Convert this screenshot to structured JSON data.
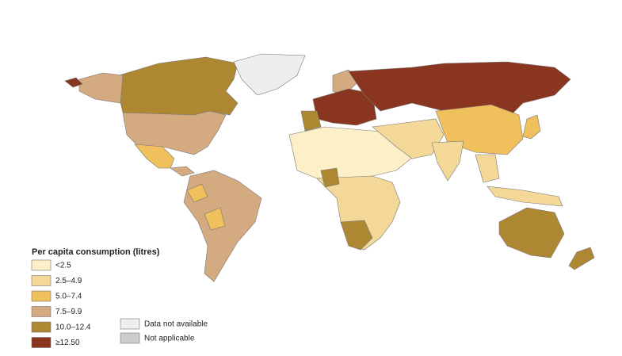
{
  "legend": {
    "title": "Per capita consumption (litres)",
    "items": [
      {
        "label": "<2.5",
        "color": "#fdf0c8"
      },
      {
        "label": "2.5–4.9",
        "color": "#f3d898"
      },
      {
        "label": "5.0–7.4",
        "color": "#efc05c"
      },
      {
        "label": "7.5–9.9",
        "color": "#d4aa80"
      },
      {
        "label": "10.0–12.4",
        "color": "#ae8733"
      },
      {
        "label": "≥12.50",
        "color": "#8a3520"
      },
      {
        "label": "Data not available",
        "color": "#eeeeee"
      },
      {
        "label": "Not applicable",
        "color": "#cccccc"
      }
    ]
  }
}
